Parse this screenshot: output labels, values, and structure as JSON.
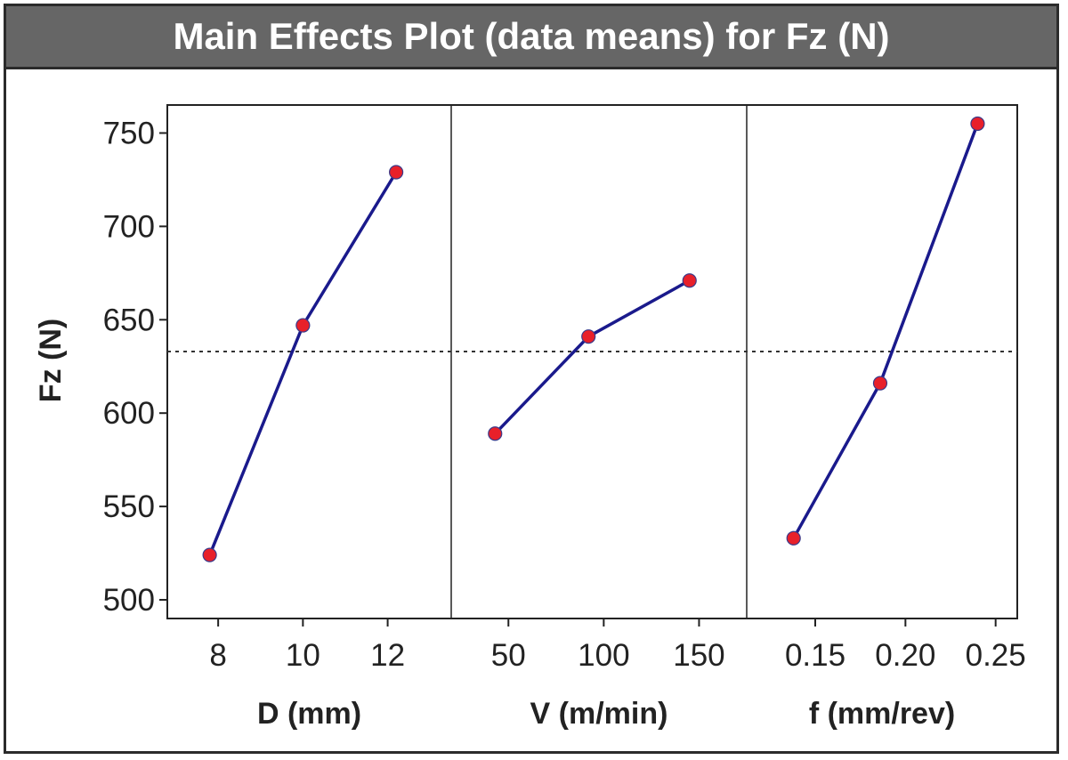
{
  "chart_data": {
    "type": "line",
    "title": "Main Effects Plot (data means) for Fz (N)",
    "ylabel": "Fz (N)",
    "ylim": [
      490,
      765
    ],
    "yticks": [
      500,
      550,
      600,
      650,
      700,
      750
    ],
    "mean_reference_line": 633,
    "grid": false,
    "colors": {
      "line": "#1a1a8c",
      "marker": "#e8202a",
      "mean_line": "#333333"
    },
    "panels": [
      {
        "xlabel": "D (mm)",
        "xlim": [
          6.8,
          13.5
        ],
        "xticks": [
          8,
          10,
          12
        ],
        "tick_labels": [
          "8",
          "10",
          "12"
        ],
        "x": [
          7.8,
          10.0,
          12.2
        ],
        "values": [
          524,
          647,
          729
        ]
      },
      {
        "xlabel": "V (m/min)",
        "xlim": [
          20,
          175
        ],
        "xticks": [
          50,
          100,
          150
        ],
        "tick_labels": [
          "50",
          "100",
          "150"
        ],
        "x": [
          43,
          92,
          145
        ],
        "values": [
          589,
          641,
          671
        ]
      },
      {
        "xlabel": "f (mm/rev)",
        "xlim": [
          0.112,
          0.262
        ],
        "xticks": [
          0.15,
          0.2,
          0.25
        ],
        "tick_labels": [
          "0.15",
          "0.20",
          "0.25"
        ],
        "x": [
          0.138,
          0.186,
          0.24
        ],
        "values": [
          533,
          616,
          755
        ]
      }
    ]
  }
}
